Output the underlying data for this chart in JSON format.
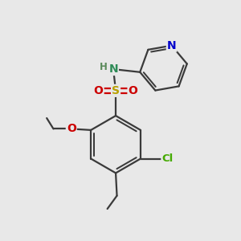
{
  "bg_color": "#e8e8e8",
  "bond_color": "#3a3a3a",
  "bond_width": 1.6,
  "atom_colors": {
    "N_pyridine": "#0000cc",
    "N_amine": "#2e8b57",
    "O": "#cc0000",
    "S": "#b8a000",
    "Cl": "#44aa00",
    "H": "#5a8a5a"
  },
  "font_size_atoms": 10,
  "font_size_small": 8.5
}
